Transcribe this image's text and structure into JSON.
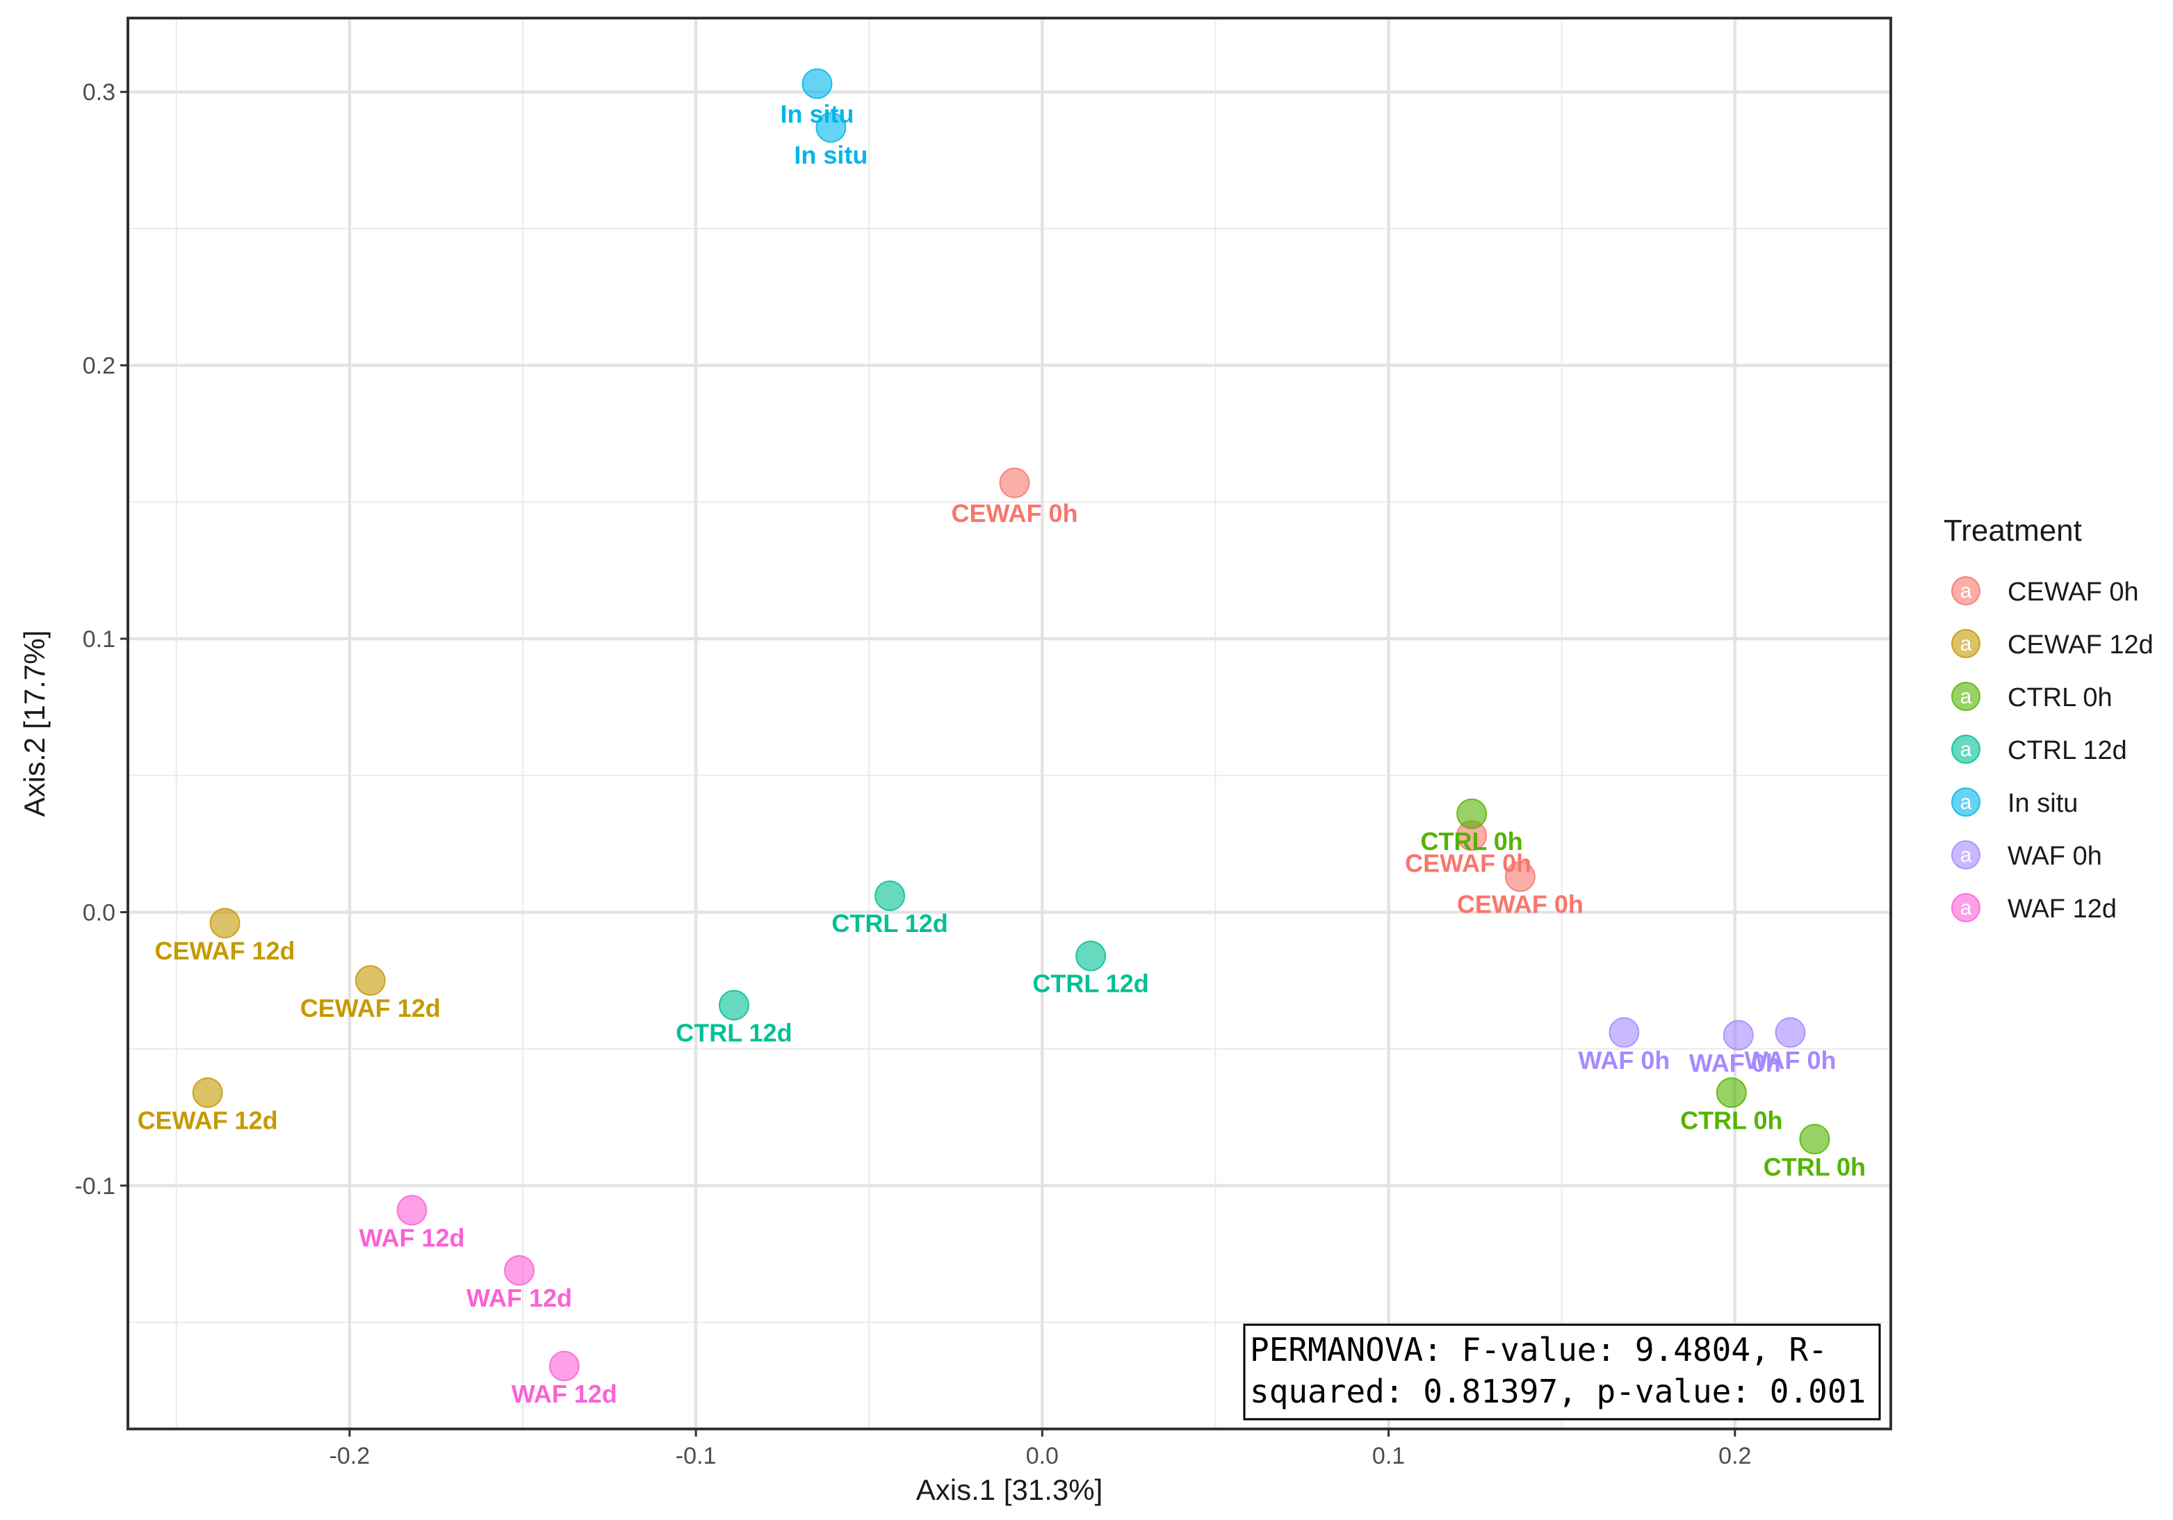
{
  "chart_data": {
    "type": "scatter",
    "title": "",
    "xlabel": "Axis.1   [31.3%]",
    "ylabel": "Axis.2   [17.7%]",
    "xlim": [
      -0.264,
      0.245
    ],
    "ylim": [
      -0.189,
      0.327
    ],
    "x_ticks": [
      -0.2,
      -0.1,
      0.0,
      0.1,
      0.2
    ],
    "x_tick_labels": [
      "-0.2",
      "-0.1",
      "0.0",
      "0.1",
      "0.2"
    ],
    "y_ticks": [
      -0.1,
      0.0,
      0.1,
      0.2,
      0.3
    ],
    "y_tick_labels": [
      "-0.1",
      "0.0",
      "0.1",
      "0.2",
      "0.3"
    ],
    "grid": true,
    "legend": {
      "title": "Treatment",
      "position": "right",
      "key_glyph": "a",
      "entries": [
        {
          "name": "CEWAF 0h",
          "color": "#F8766D"
        },
        {
          "name": "CEWAF 12d",
          "color": "#C49A00"
        },
        {
          "name": "CTRL 0h",
          "color": "#53B400"
        },
        {
          "name": "CTRL 12d",
          "color": "#00C094"
        },
        {
          "name": "In situ",
          "color": "#00B6EB"
        },
        {
          "name": "WAF 0h",
          "color": "#A58AFF"
        },
        {
          "name": "WAF 12d",
          "color": "#FB61D7"
        }
      ]
    },
    "series": [
      {
        "name": "CEWAF 0h",
        "color": "#F8766D",
        "points": [
          {
            "x": -0.008,
            "y": 0.157
          },
          {
            "x": 0.124,
            "y": 0.028
          },
          {
            "x": 0.138,
            "y": 0.013
          }
        ]
      },
      {
        "name": "CEWAF 12d",
        "color": "#C49A00",
        "points": [
          {
            "x": -0.236,
            "y": -0.004
          },
          {
            "x": -0.194,
            "y": -0.025
          },
          {
            "x": -0.241,
            "y": -0.066
          }
        ]
      },
      {
        "name": "CTRL 0h",
        "color": "#53B400",
        "points": [
          {
            "x": 0.124,
            "y": 0.036
          },
          {
            "x": 0.199,
            "y": -0.066
          },
          {
            "x": 0.223,
            "y": -0.083
          }
        ]
      },
      {
        "name": "CTRL 12d",
        "color": "#00C094",
        "points": [
          {
            "x": -0.044,
            "y": 0.006
          },
          {
            "x": 0.014,
            "y": -0.016
          },
          {
            "x": -0.089,
            "y": -0.034
          }
        ]
      },
      {
        "name": "In situ",
        "color": "#00B6EB",
        "points": [
          {
            "x": -0.065,
            "y": 0.303
          },
          {
            "x": -0.061,
            "y": 0.287
          }
        ]
      },
      {
        "name": "WAF 0h",
        "color": "#A58AFF",
        "points": [
          {
            "x": 0.168,
            "y": -0.044
          },
          {
            "x": 0.201,
            "y": -0.045
          },
          {
            "x": 0.216,
            "y": -0.044
          }
        ]
      },
      {
        "name": "WAF 12d",
        "color": "#FB61D7",
        "points": [
          {
            "x": -0.182,
            "y": -0.109
          },
          {
            "x": -0.151,
            "y": -0.131
          },
          {
            "x": -0.138,
            "y": -0.166
          }
        ]
      }
    ],
    "point_labels": [
      {
        "text": "CEWAF 0h",
        "x": -0.008,
        "y": 0.146,
        "color": "#F8766D"
      },
      {
        "text": "CEWAF 0h",
        "x": 0.123,
        "y": 0.018,
        "color": "#F8766D"
      },
      {
        "text": "CEWAF 0h",
        "x": 0.138,
        "y": 0.003,
        "color": "#F8766D"
      },
      {
        "text": "CEWAF 12d",
        "x": -0.236,
        "y": -0.014,
        "color": "#C49A00"
      },
      {
        "text": "CEWAF 12d",
        "x": -0.194,
        "y": -0.035,
        "color": "#C49A00"
      },
      {
        "text": "CEWAF 12d",
        "x": -0.241,
        "y": -0.076,
        "color": "#C49A00"
      },
      {
        "text": "CTRL 0h",
        "x": 0.124,
        "y": 0.026,
        "color": "#53B400"
      },
      {
        "text": "CTRL 0h",
        "x": 0.199,
        "y": -0.076,
        "color": "#53B400"
      },
      {
        "text": "CTRL 0h",
        "x": 0.223,
        "y": -0.093,
        "color": "#53B400"
      },
      {
        "text": "CTRL 12d",
        "x": -0.044,
        "y": -0.004,
        "color": "#00C094"
      },
      {
        "text": "CTRL 12d",
        "x": 0.014,
        "y": -0.026,
        "color": "#00C094"
      },
      {
        "text": "CTRL 12d",
        "x": -0.089,
        "y": -0.044,
        "color": "#00C094"
      },
      {
        "text": "In situ",
        "x": -0.065,
        "y": 0.292,
        "color": "#00B6EB"
      },
      {
        "text": "In situ",
        "x": -0.061,
        "y": 0.277,
        "color": "#00B6EB"
      },
      {
        "text": "WAF 0h",
        "x": 0.168,
        "y": -0.054,
        "color": "#A58AFF"
      },
      {
        "text": "WAF 0h",
        "x": 0.2,
        "y": -0.055,
        "color": "#A58AFF"
      },
      {
        "text": "WAF 0h",
        "x": 0.216,
        "y": -0.054,
        "color": "#A58AFF"
      },
      {
        "text": "WAF 12d",
        "x": -0.182,
        "y": -0.119,
        "color": "#FB61D7"
      },
      {
        "text": "WAF 12d",
        "x": -0.151,
        "y": -0.141,
        "color": "#FB61D7"
      },
      {
        "text": "WAF 12d",
        "x": -0.138,
        "y": -0.176,
        "color": "#FB61D7"
      }
    ],
    "annotation": {
      "lines": [
        "PERMANOVA: F-value: 9.4804, R-",
        "squared: 0.81397, p-value: 0.001"
      ],
      "position": "bottom-right"
    }
  }
}
